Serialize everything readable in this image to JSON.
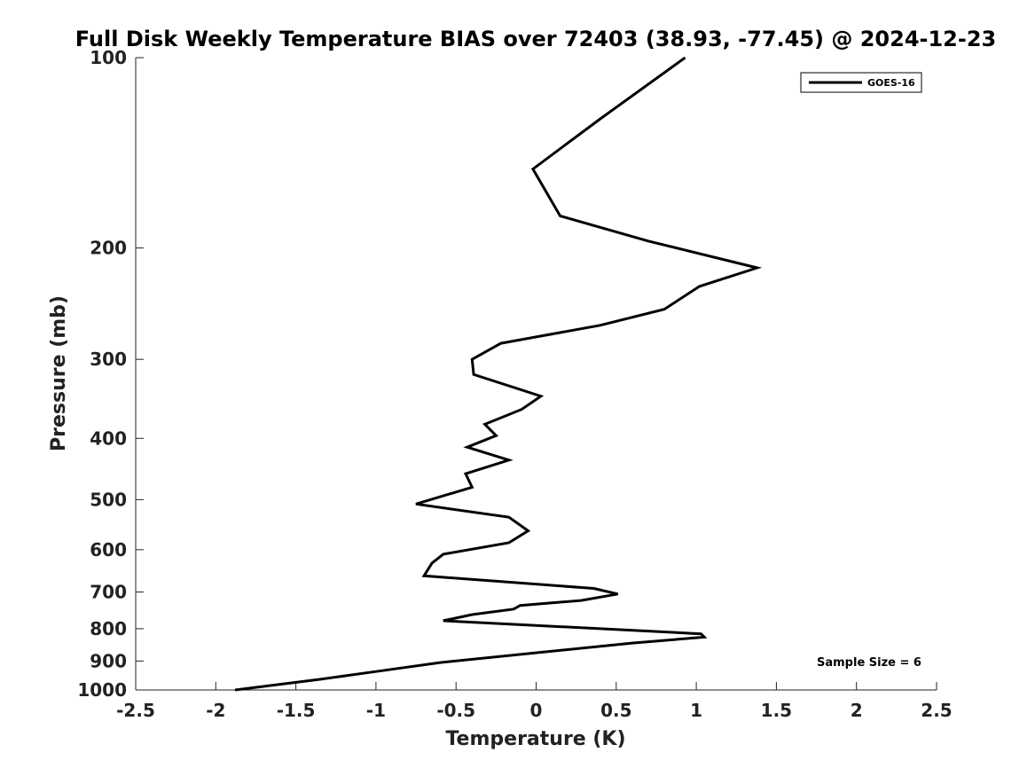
{
  "chart_data": {
    "type": "line",
    "title": "Full Disk Weekly Temperature BIAS over 72403 (38.93, -77.45) @ 2024-12-23",
    "xlabel": "Temperature (K)",
    "ylabel": "Pressure (mb)",
    "xlim": [
      -2.5,
      2.5
    ],
    "ylim": [
      1000,
      100
    ],
    "y_scale": "log",
    "y_reversed": true,
    "x_ticks": [
      "-2.5",
      "-2",
      "-1.5",
      "-1",
      "-0.5",
      "0",
      "0.5",
      "1",
      "1.5",
      "2",
      "2.5"
    ],
    "y_ticks": [
      "100",
      "200",
      "300",
      "400",
      "500",
      "600",
      "700",
      "800",
      "900",
      "1000"
    ],
    "grid": false,
    "legend_position": "top-right",
    "annotation": "Sample Size = 6",
    "series": [
      {
        "name": "GOES-16",
        "color": "#000000",
        "points": [
          [
            0.93,
            100
          ],
          [
            0.4,
            125
          ],
          [
            -0.02,
            150
          ],
          [
            0.15,
            178
          ],
          [
            0.7,
            195
          ],
          [
            1.38,
            215
          ],
          [
            1.02,
            230
          ],
          [
            0.8,
            250
          ],
          [
            0.4,
            265
          ],
          [
            -0.22,
            283
          ],
          [
            -0.4,
            300
          ],
          [
            -0.39,
            317
          ],
          [
            0.03,
            343
          ],
          [
            -0.09,
            360
          ],
          [
            -0.32,
            380
          ],
          [
            -0.25,
            396
          ],
          [
            -0.43,
            413
          ],
          [
            -0.17,
            433
          ],
          [
            -0.44,
            455
          ],
          [
            -0.4,
            478
          ],
          [
            -0.75,
            508
          ],
          [
            -0.17,
            533
          ],
          [
            -0.05,
            560
          ],
          [
            -0.17,
            585
          ],
          [
            -0.58,
            610
          ],
          [
            -0.65,
            630
          ],
          [
            -0.7,
            660
          ],
          [
            0.36,
            691
          ],
          [
            0.51,
            705
          ],
          [
            0.28,
            722
          ],
          [
            -0.1,
            735
          ],
          [
            -0.14,
            745
          ],
          [
            -0.4,
            760
          ],
          [
            -0.58,
            777
          ],
          [
            1.03,
            815
          ],
          [
            1.05,
            825
          ],
          [
            0.6,
            843
          ],
          [
            -0.6,
            905
          ],
          [
            -1.0,
            935
          ],
          [
            -1.35,
            962
          ],
          [
            -1.88,
            1000
          ]
        ]
      }
    ]
  }
}
